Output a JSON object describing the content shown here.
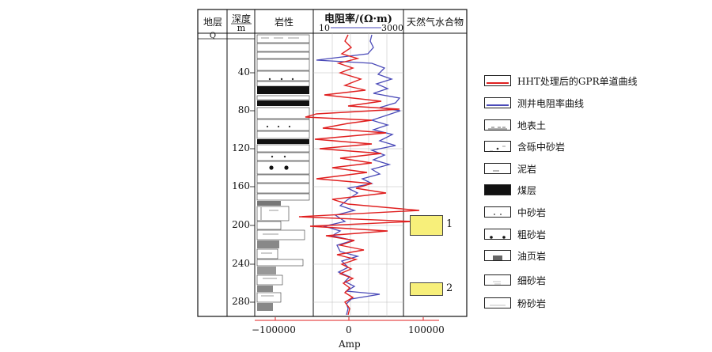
{
  "headers": {
    "stratum": "地层",
    "depth": "深度",
    "depth_unit": "m",
    "lithology": "岩性",
    "resistivity": "电阻率/(Ω·m)",
    "res_min": "10",
    "res_max": "3000",
    "hydrate": "天然气水合物"
  },
  "stratum_label": "Q",
  "depth_ticks": [
    "40",
    "80",
    "120",
    "160",
    "200",
    "240",
    "280"
  ],
  "amp_axis": {
    "label": "Amp",
    "ticks": [
      "−100000",
      "0",
      "100000"
    ]
  },
  "hydrate_zones": [
    {
      "label": "1",
      "top_depth": 190,
      "bottom_depth": 209
    },
    {
      "label": "2",
      "top_depth": 258,
      "bottom_depth": 270
    }
  ],
  "legend": [
    {
      "label": "HHT处理后的GPR单道曲线",
      "kind": "red-line",
      "color": "#e02020"
    },
    {
      "label": "测井电阻率曲线",
      "kind": "blue-line",
      "color": "#4a4ab8"
    },
    {
      "label": "地表土",
      "kind": "topsoil"
    },
    {
      "label": "含砾中砂岩",
      "kind": "pebbly-sandstone"
    },
    {
      "label": "泥岩",
      "kind": "mudstone"
    },
    {
      "label": "煤层",
      "kind": "coal"
    },
    {
      "label": "中砂岩",
      "kind": "medium-sandstone"
    },
    {
      "label": "粗砂岩",
      "kind": "coarse-sandstone"
    },
    {
      "label": "油页岩",
      "kind": "oil-shale"
    },
    {
      "label": "细砂岩",
      "kind": "fine-sandstone"
    },
    {
      "label": "粉砂岩",
      "kind": "siltstone"
    }
  ]
}
